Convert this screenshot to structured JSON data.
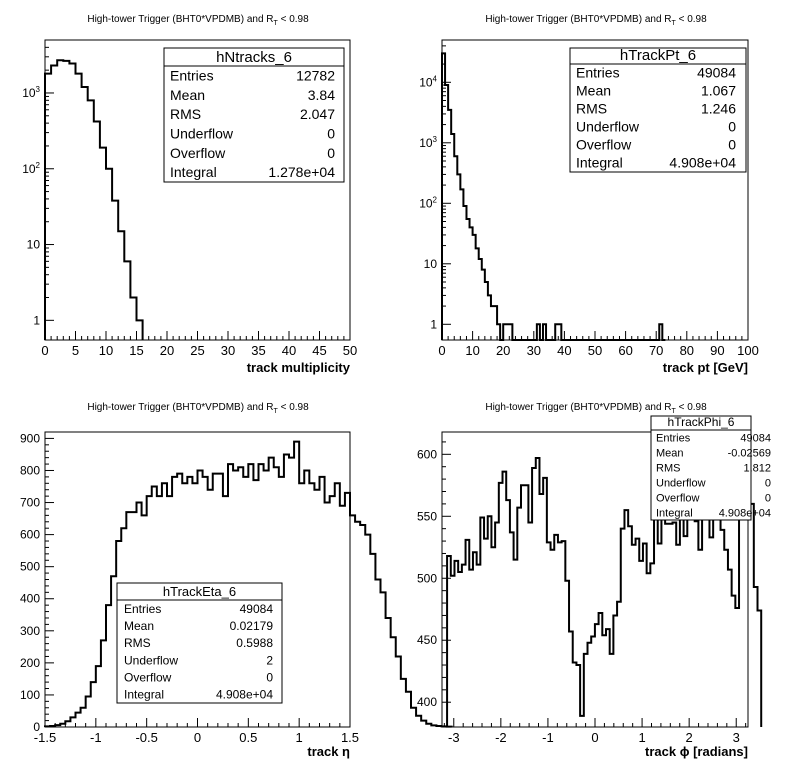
{
  "chart_data": [
    {
      "id": "p1",
      "type": "histogram",
      "title": "High-tower Trigger (BHT0*VPDMB) and R",
      "title_sub": "T",
      "title_tail": " < 0.98",
      "xlabel": "track multiplicity",
      "xlim": [
        0,
        50
      ],
      "xticks": [
        "0",
        "5",
        "10",
        "15",
        "20",
        "25",
        "30",
        "35",
        "40",
        "45",
        "50"
      ],
      "yscale": "log",
      "ylim": [
        0.55,
        5000
      ],
      "yticks": [
        {
          "v": 1,
          "base": "1",
          "exp": ""
        },
        {
          "v": 10,
          "base": "10",
          "exp": ""
        },
        {
          "v": 100,
          "base": "10",
          "exp": "2"
        },
        {
          "v": 1000,
          "base": "10",
          "exp": "3"
        }
      ],
      "bin_edges_start": 0,
      "bin_width": 1,
      "values": [
        1800,
        2300,
        2700,
        2650,
        2450,
        1800,
        1200,
        800,
        420,
        190,
        100,
        38,
        15,
        6,
        2,
        1
      ],
      "stats": {
        "name": "hNtracks_6",
        "rows": [
          [
            "Entries",
            "12782"
          ],
          [
            "Mean",
            "3.84"
          ],
          [
            "RMS",
            "2.047"
          ],
          [
            "Underflow",
            "0"
          ],
          [
            "Overflow",
            "0"
          ],
          [
            "Integral",
            "1.278e+04"
          ]
        ]
      }
    },
    {
      "id": "p2",
      "type": "histogram",
      "title": "High-tower Trigger (BHT0*VPDMB) and R",
      "title_sub": "T",
      "title_tail": " < 0.98",
      "xlabel": "track pt [GeV]",
      "xlim": [
        0,
        100
      ],
      "xticks": [
        "0",
        "10",
        "20",
        "30",
        "40",
        "50",
        "60",
        "70",
        "80",
        "90",
        "100"
      ],
      "yscale": "log",
      "ylim": [
        0.55,
        50000
      ],
      "yticks": [
        {
          "v": 1,
          "base": "1",
          "exp": ""
        },
        {
          "v": 10,
          "base": "10",
          "exp": ""
        },
        {
          "v": 100,
          "base": "10",
          "exp": "2"
        },
        {
          "v": 1000,
          "base": "10",
          "exp": "3"
        },
        {
          "v": 10000,
          "base": "10",
          "exp": "4"
        }
      ],
      "bin_edges_start": 0,
      "bin_width": 1,
      "values": [
        30000,
        9000,
        3500,
        1400,
        600,
        300,
        170,
        90,
        55,
        40,
        30,
        18,
        12,
        8,
        5,
        3,
        2,
        2,
        1,
        0,
        1,
        1,
        1,
        0,
        0,
        0,
        0,
        0,
        0,
        0,
        0,
        1,
        0,
        1,
        0,
        0,
        0,
        1,
        1,
        0,
        0,
        0,
        0,
        0,
        0,
        0,
        0,
        0,
        0,
        0,
        0,
        0,
        0,
        0,
        0,
        0,
        0,
        0,
        0,
        0,
        0,
        0,
        0,
        0,
        0,
        0,
        0,
        0,
        0,
        0,
        0,
        1,
        0
      ],
      "stats": {
        "name": "hTrackPt_6",
        "rows": [
          [
            "Entries",
            "49084"
          ],
          [
            "Mean",
            "1.067"
          ],
          [
            "RMS",
            "1.246"
          ],
          [
            "Underflow",
            "0"
          ],
          [
            "Overflow",
            "0"
          ],
          [
            "Integral",
            "4.908e+04"
          ]
        ]
      }
    },
    {
      "id": "p3",
      "type": "histogram",
      "title": "High-tower Trigger (BHT0*VPDMB) and R",
      "title_sub": "T",
      "title_tail": " < 0.98",
      "xlabel": "track η",
      "xlim": [
        -1.5,
        1.5
      ],
      "xticks": [
        "-1.5",
        "-1",
        "-0.5",
        "0",
        "0.5",
        "1",
        "1.5"
      ],
      "yscale": "linear",
      "ylim": [
        0,
        920
      ],
      "yticks": [
        "0",
        "100",
        "200",
        "300",
        "400",
        "500",
        "600",
        "700",
        "800",
        "900"
      ],
      "bin_edges_start": -1.5,
      "bin_width": 0.05,
      "values": [
        2,
        3,
        6,
        10,
        18,
        30,
        45,
        60,
        95,
        140,
        190,
        270,
        380,
        470,
        580,
        620,
        670,
        670,
        700,
        660,
        720,
        750,
        720,
        760,
        720,
        780,
        790,
        760,
        780,
        760,
        800,
        780,
        740,
        790,
        790,
        720,
        820,
        800,
        810,
        780,
        820,
        770,
        820,
        800,
        840,
        810,
        780,
        850,
        840,
        890,
        760,
        800,
        760,
        740,
        780,
        700,
        720,
        760,
        690,
        730,
        660,
        640,
        630,
        600,
        540,
        460,
        420,
        340,
        280,
        220,
        150,
        110,
        60,
        35,
        20,
        10,
        5,
        3,
        2,
        1
      ],
      "stats": {
        "name": "hTrackEta_6",
        "rows": [
          [
            "Entries",
            "49084"
          ],
          [
            "Mean",
            "0.02179"
          ],
          [
            "RMS",
            "0.5988"
          ],
          [
            "Underflow",
            "2"
          ],
          [
            "Overflow",
            "0"
          ],
          [
            "Integral",
            "4.908e+04"
          ]
        ]
      }
    },
    {
      "id": "p4",
      "type": "histogram",
      "title": "High-tower Trigger (BHT0*VPDMB) and R",
      "title_sub": "T",
      "title_tail": " < 0.98",
      "xlabel": "track ϕ [radians]",
      "xlim": [
        -3.25,
        3.25
      ],
      "xticks": [
        "-3",
        "-2",
        "-1",
        "0",
        "1",
        "2",
        "3"
      ],
      "xtick_vals": [
        -3,
        -2,
        -1,
        0,
        1,
        2,
        3
      ],
      "yscale": "linear",
      "ylim": [
        380,
        618
      ],
      "yticks": [
        "400",
        "450",
        "500",
        "550",
        "600"
      ],
      "bin_edges_start": -3.142,
      "bin_width": 0.0785,
      "values": [
        518,
        502,
        514,
        505,
        511,
        531,
        507,
        521,
        511,
        549,
        532,
        550,
        525,
        545,
        577,
        586,
        563,
        537,
        515,
        557,
        575,
        575,
        545,
        589,
        597,
        568,
        581,
        529,
        523,
        535,
        529,
        530,
        498,
        457,
        432,
        430,
        389,
        439,
        448,
        453,
        463,
        472,
        454,
        459,
        439,
        470,
        481,
        540,
        555,
        542,
        527,
        532,
        514,
        528,
        504,
        512,
        549,
        528,
        578,
        544,
        544,
        545,
        527,
        576,
        534,
        571,
        567,
        546,
        523,
        583,
        588,
        533,
        556,
        551,
        539,
        523,
        507,
        486,
        476,
        567,
        570,
        583,
        560,
        493,
        474
      ],
      "stats": {
        "name": "hTrackPhi_6",
        "rows": [
          [
            "Entries",
            "49084"
          ],
          [
            "Mean",
            "-0.02569"
          ],
          [
            "RMS",
            "1.812"
          ],
          [
            "Underflow",
            "0"
          ],
          [
            "Overflow",
            "0"
          ],
          [
            "Integral",
            "4.908e+04"
          ]
        ]
      }
    }
  ]
}
